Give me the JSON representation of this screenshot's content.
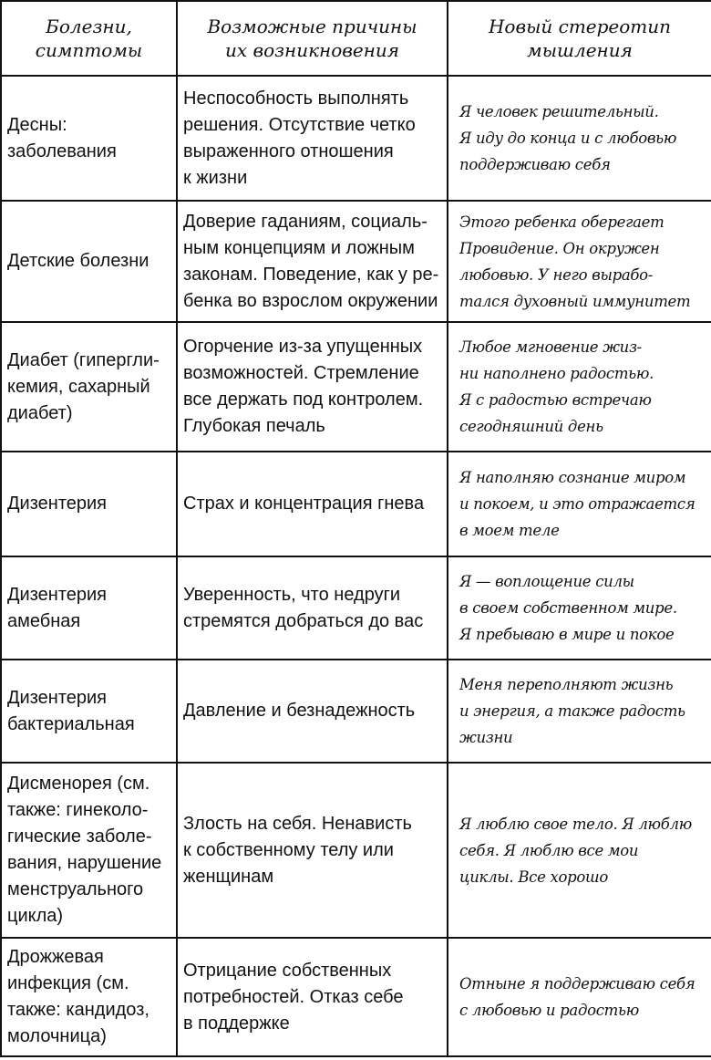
{
  "header": {
    "col1": "Болезни,\nсимптомы",
    "col2": "Возможные причины\nих возникновения",
    "col3": "Новый стереотип\nмышления"
  },
  "rows": [
    {
      "disease": "Десны:\nзаболевания",
      "cause": "Неспособность выполнять\nрешения. Отсутствие четко\nвыраженного отношения\nк жизни",
      "thought": "Я человек решительный.\nЯ иду до конца и с любовью\nподдерживаю себя"
    },
    {
      "disease": "Детские болезни",
      "cause": "Доверие гаданиям, социаль-\nным концепциям и ложным\nзаконам. Поведение, как у ре-\nбенка во взрослом окружении",
      "thought": "Этого ребенка оберегает\nПровидение. Он окружен\nлюбовью. У него вырабо-\nтался духовный иммунитет"
    },
    {
      "disease": "Диабет (гипергли-\nкемия, сахарный\nдиабет)",
      "cause": "Огорчение из-за упущенных\nвозможностей. Стремление\nвсе держать под контролем.\nГлубокая печаль",
      "thought": "Любое мгновение жиз-\nни наполнено радостью.\nЯ с радостью встречаю\nсегодняшний день"
    },
    {
      "disease": "Дизентерия",
      "cause": "Страх и концентрация гнева",
      "thought": "Я наполняю сознание миром\nи покоем, и это отражается\nв моем теле"
    },
    {
      "disease": "Дизентерия\nамебная",
      "cause": "Уверенность, что недруги\nстремятся добраться до вас",
      "thought": "Я — воплощение силы\nв своем собственном мире.\nЯ пребываю в мире и покое"
    },
    {
      "disease": "Дизентерия\nбактериальная",
      "cause": "Давление и безнадежность",
      "thought": "Меня переполняют жизнь\nи энергия, а также радость\nжизни"
    },
    {
      "disease": "Дисменорея (см.\nтакже: гинеколо-\nгические заболе-\nвания, нарушение\nменструального\nцикла)",
      "cause": "Злость на себя. Ненависть\nк собственному телу или\nженщинам",
      "thought": "Я люблю свое тело. Я люблю\nсебя. Я люблю все мои\nциклы. Все хорошо"
    },
    {
      "disease": "Дрожжевая\nинфекция (см.\nтакже: кандидоз,\nмолочница)",
      "cause": "Отрицание собственных\nпотребностей. Отказ себе\nв поддержке",
      "thought": "Отныне я поддерживаю себя\nс любовью и радостью"
    }
  ]
}
